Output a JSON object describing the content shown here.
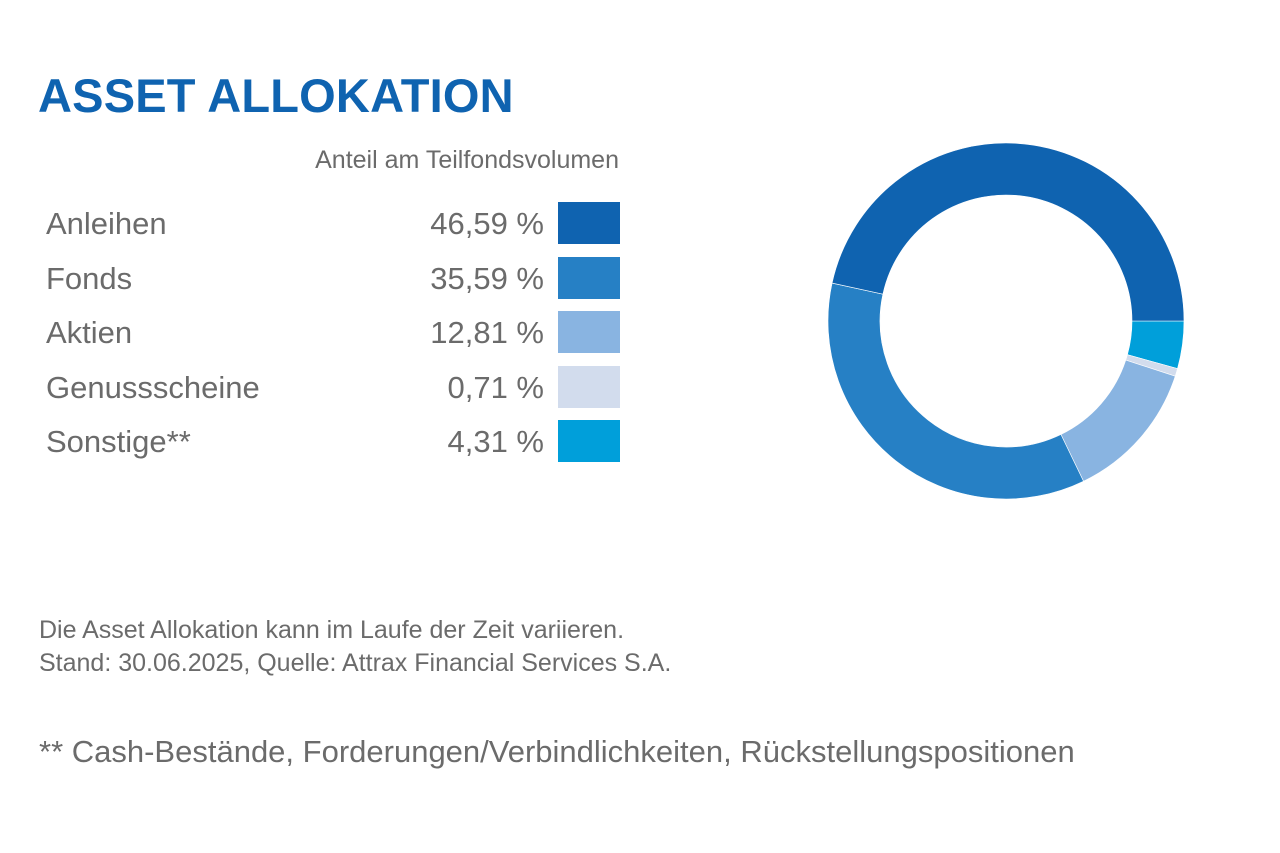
{
  "header": {
    "title": "ASSET ALLOKATION",
    "subtitle": "Anteil am Teilfondsvolumen"
  },
  "chart_data": {
    "type": "pie",
    "variant": "donut",
    "title": "ASSET ALLOKATION",
    "subtitle": "Anteil am Teilfondsvolumen",
    "unit": "%",
    "legend_position": "left",
    "categories": [
      "Anleihen",
      "Fonds",
      "Aktien",
      "Genussscheine",
      "Sonstige**"
    ],
    "values": [
      46.59,
      35.59,
      12.81,
      0.71,
      4.31
    ],
    "value_labels": [
      "46,59 %",
      "35,59 %",
      "12,81 %",
      "0,71 %",
      "4,31 %"
    ],
    "colors": [
      "#0f63b0",
      "#2680c5",
      "#89b4e1",
      "#d2dced",
      "#009fda"
    ],
    "ring_order_clockwise_from_3_oclock": [
      "Sonstige**",
      "Genussscheine",
      "Aktien",
      "Fonds",
      "Anleihen"
    ]
  },
  "notes": {
    "line1": "Die Asset Allokation kann im Laufe der Zeit variieren.",
    "line2": "Stand: 30.06.2025, Quelle: Attrax Financial Services S.A.",
    "footnote": "** Cash-Bestände, Forderungen/Verbindlichkeiten, Rückstellungspositionen"
  }
}
